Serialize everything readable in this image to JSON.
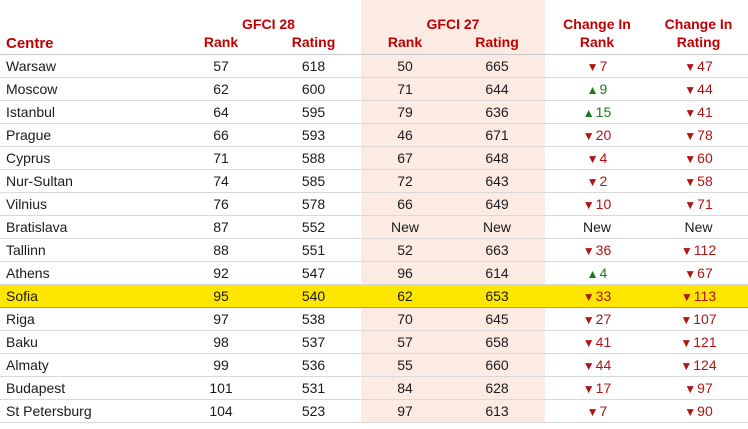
{
  "header": {
    "centre": "Centre",
    "gfci28": "GFCI 28",
    "gfci27": "GFCI 27",
    "change_rank_1": "Change In",
    "change_rank_2": "Rank",
    "change_rating_1": "Change In",
    "change_rating_2": "Rating",
    "rank": "Rank",
    "rating": "Rating"
  },
  "colors": {
    "down": "#b01515",
    "up": "#1d7a1d",
    "highlight": "#ffe600",
    "header_red": "#c00000",
    "shade": "#fcebe3"
  },
  "rows": [
    {
      "centre": "Warsaw",
      "rank28": "57",
      "rating28": "618",
      "rank27": "50",
      "rating27": "665",
      "dRank": "7",
      "dRankDir": "down",
      "dRating": "47",
      "dRatingDir": "down"
    },
    {
      "centre": "Moscow",
      "rank28": "62",
      "rating28": "600",
      "rank27": "71",
      "rating27": "644",
      "dRank": "9",
      "dRankDir": "up",
      "dRating": "44",
      "dRatingDir": "down"
    },
    {
      "centre": "Istanbul",
      "rank28": "64",
      "rating28": "595",
      "rank27": "79",
      "rating27": "636",
      "dRank": "15",
      "dRankDir": "up",
      "dRating": "41",
      "dRatingDir": "down"
    },
    {
      "centre": "Prague",
      "rank28": "66",
      "rating28": "593",
      "rank27": "46",
      "rating27": "671",
      "dRank": "20",
      "dRankDir": "down",
      "dRating": "78",
      "dRatingDir": "down"
    },
    {
      "centre": "Cyprus",
      "rank28": "71",
      "rating28": "588",
      "rank27": "67",
      "rating27": "648",
      "dRank": "4",
      "dRankDir": "down",
      "dRating": "60",
      "dRatingDir": "down"
    },
    {
      "centre": "Nur-Sultan",
      "rank28": "74",
      "rating28": "585",
      "rank27": "72",
      "rating27": "643",
      "dRank": "2",
      "dRankDir": "down",
      "dRating": "58",
      "dRatingDir": "down"
    },
    {
      "centre": "Vilnius",
      "rank28": "76",
      "rating28": "578",
      "rank27": "66",
      "rating27": "649",
      "dRank": "10",
      "dRankDir": "down",
      "dRating": "71",
      "dRatingDir": "down"
    },
    {
      "centre": "Bratislava",
      "rank28": "87",
      "rating28": "552",
      "rank27": "New",
      "rating27": "New",
      "dRank": "New",
      "dRankDir": "none",
      "dRating": "New",
      "dRatingDir": "none"
    },
    {
      "centre": "Tallinn",
      "rank28": "88",
      "rating28": "551",
      "rank27": "52",
      "rating27": "663",
      "dRank": "36",
      "dRankDir": "down",
      "dRating": "112",
      "dRatingDir": "down"
    },
    {
      "centre": "Athens",
      "rank28": "92",
      "rating28": "547",
      "rank27": "96",
      "rating27": "614",
      "dRank": "4",
      "dRankDir": "up",
      "dRating": "67",
      "dRatingDir": "down"
    },
    {
      "centre": "Sofia",
      "rank28": "95",
      "rating28": "540",
      "rank27": "62",
      "rating27": "653",
      "dRank": "33",
      "dRankDir": "down",
      "dRating": "113",
      "dRatingDir": "down",
      "highlight": true
    },
    {
      "centre": "Riga",
      "rank28": "97",
      "rating28": "538",
      "rank27": "70",
      "rating27": "645",
      "dRank": "27",
      "dRankDir": "down",
      "dRating": "107",
      "dRatingDir": "down"
    },
    {
      "centre": "Baku",
      "rank28": "98",
      "rating28": "537",
      "rank27": "57",
      "rating27": "658",
      "dRank": "41",
      "dRankDir": "down",
      "dRating": "121",
      "dRatingDir": "down"
    },
    {
      "centre": "Almaty",
      "rank28": "99",
      "rating28": "536",
      "rank27": "55",
      "rating27": "660",
      "dRank": "44",
      "dRankDir": "down",
      "dRating": "124",
      "dRatingDir": "down"
    },
    {
      "centre": "Budapest",
      "rank28": "101",
      "rating28": "531",
      "rank27": "84",
      "rating27": "628",
      "dRank": "17",
      "dRankDir": "down",
      "dRating": "97",
      "dRatingDir": "down"
    },
    {
      "centre": "St Petersburg",
      "rank28": "104",
      "rating28": "523",
      "rank27": "97",
      "rating27": "613",
      "dRank": "7",
      "dRankDir": "down",
      "dRating": "90",
      "dRatingDir": "down"
    }
  ]
}
